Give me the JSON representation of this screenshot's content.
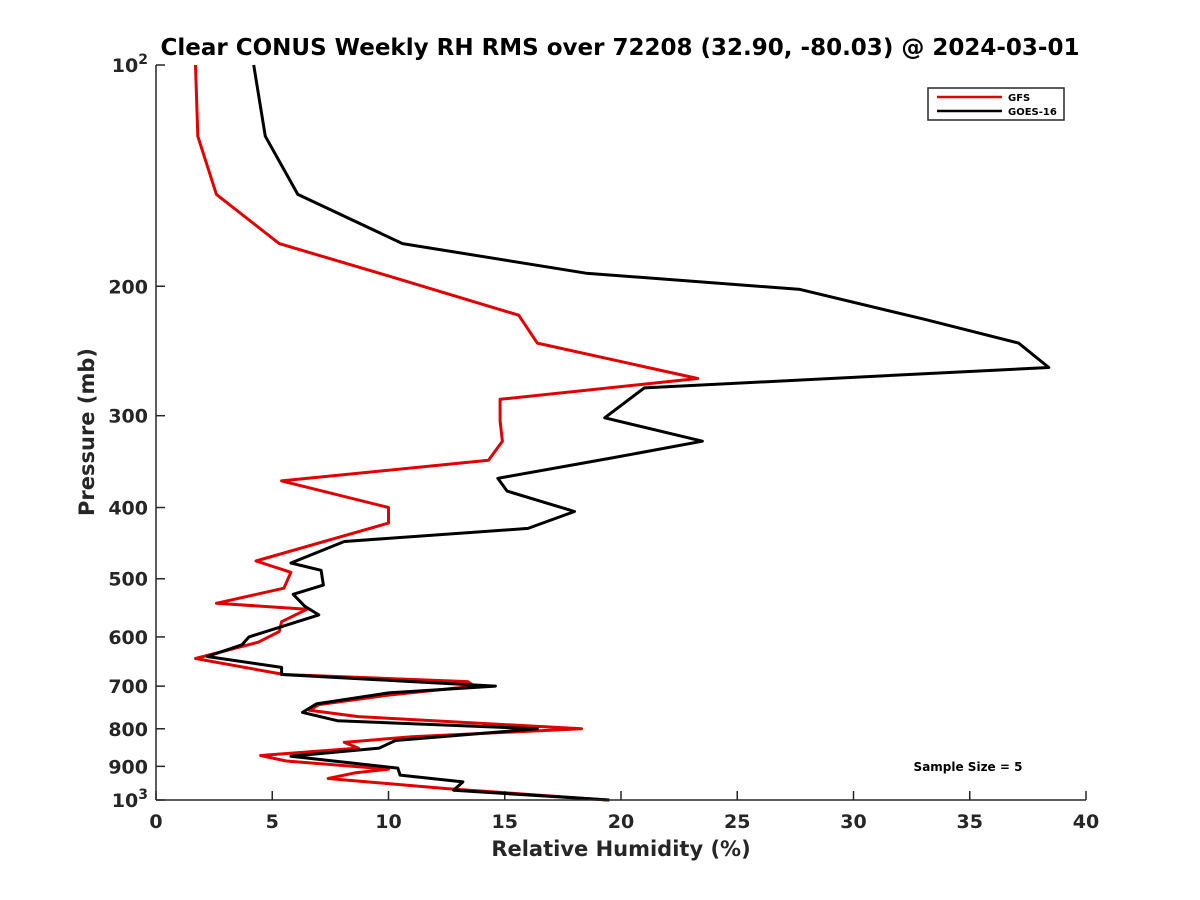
{
  "chart_data": {
    "type": "line",
    "title": "Clear CONUS Weekly RH RMS over 72208 (32.90, -80.03) @ 2024-03-01",
    "xlabel": "Relative Humidity (%)",
    "ylabel": "Pressure (mb)",
    "xlim": [
      0,
      40
    ],
    "ylim": [
      1000,
      100
    ],
    "y_scale": "log",
    "y_reversed": true,
    "x_ticks": [
      0,
      5,
      10,
      15,
      20,
      25,
      30,
      35,
      40
    ],
    "x_tick_labels": [
      "0",
      "5",
      "10",
      "15",
      "20",
      "25",
      "30",
      "35",
      "40"
    ],
    "y_ticks": [
      100,
      200,
      300,
      400,
      500,
      600,
      700,
      800,
      900,
      1000
    ],
    "y_tick_labels": [
      {
        "base": "10",
        "exp": "2"
      },
      {
        "base": "200",
        "exp": ""
      },
      {
        "base": "300",
        "exp": ""
      },
      {
        "base": "400",
        "exp": ""
      },
      {
        "base": "500",
        "exp": ""
      },
      {
        "base": "600",
        "exp": ""
      },
      {
        "base": "700",
        "exp": ""
      },
      {
        "base": "800",
        "exp": ""
      },
      {
        "base": "900",
        "exp": ""
      },
      {
        "base": "10",
        "exp": "3"
      }
    ],
    "grid": false,
    "legend_position": "top-right",
    "annotation": "Sample Size = 5",
    "series": [
      {
        "name": "GFS",
        "color": "#e00000",
        "points": [
          [
            1.7,
            100
          ],
          [
            1.8,
            125
          ],
          [
            2.6,
            150
          ],
          [
            5.3,
            175
          ],
          [
            9.6,
            192
          ],
          [
            15.6,
            219
          ],
          [
            16.4,
            239
          ],
          [
            23.3,
            267
          ],
          [
            14.8,
            285
          ],
          [
            14.8,
            305
          ],
          [
            14.9,
            325
          ],
          [
            14.3,
            345
          ],
          [
            5.4,
            368
          ],
          [
            10.0,
            400
          ],
          [
            10.0,
            420
          ],
          [
            4.3,
            473
          ],
          [
            5.8,
            490
          ],
          [
            5.5,
            515
          ],
          [
            2.6,
            540
          ],
          [
            6.5,
            550
          ],
          [
            5.4,
            572
          ],
          [
            5.3,
            590
          ],
          [
            4.4,
            610
          ],
          [
            1.7,
            642
          ],
          [
            5.5,
            675
          ],
          [
            13.4,
            690
          ],
          [
            13.7,
            700
          ],
          [
            10.0,
            720
          ],
          [
            7.0,
            742
          ],
          [
            6.6,
            755
          ],
          [
            8.7,
            770
          ],
          [
            18.3,
            800
          ],
          [
            11.0,
            820
          ],
          [
            8.1,
            835
          ],
          [
            8.7,
            850
          ],
          [
            4.5,
            870
          ],
          [
            5.6,
            885
          ],
          [
            10.0,
            908
          ],
          [
            8.6,
            918
          ],
          [
            7.4,
            935
          ],
          [
            12.5,
            965
          ],
          [
            19.4,
            1000
          ]
        ]
      },
      {
        "name": "GOES-16",
        "color": "#000000",
        "points": [
          [
            4.2,
            100
          ],
          [
            4.7,
            125
          ],
          [
            6.1,
            150
          ],
          [
            10.6,
            175
          ],
          [
            18.5,
            192
          ],
          [
            27.7,
            202
          ],
          [
            33.1,
            222
          ],
          [
            37.1,
            239
          ],
          [
            38.4,
            258
          ],
          [
            21.0,
            275
          ],
          [
            19.3,
            302
          ],
          [
            23.5,
            325
          ],
          [
            19.5,
            343
          ],
          [
            14.7,
            365
          ],
          [
            15.1,
            380
          ],
          [
            18.0,
            405
          ],
          [
            16.0,
            427
          ],
          [
            8.1,
            445
          ],
          [
            5.8,
            476
          ],
          [
            7.1,
            487
          ],
          [
            7.2,
            510
          ],
          [
            5.9,
            525
          ],
          [
            6.4,
            545
          ],
          [
            7.0,
            560
          ],
          [
            4.0,
            600
          ],
          [
            3.7,
            615
          ],
          [
            2.2,
            638
          ],
          [
            5.4,
            660
          ],
          [
            5.4,
            675
          ],
          [
            11.0,
            690
          ],
          [
            14.6,
            700
          ],
          [
            10.0,
            715
          ],
          [
            6.9,
            740
          ],
          [
            6.3,
            760
          ],
          [
            7.8,
            780
          ],
          [
            16.4,
            800
          ],
          [
            10.3,
            830
          ],
          [
            9.6,
            850
          ],
          [
            5.8,
            872
          ],
          [
            10.4,
            905
          ],
          [
            10.5,
            925
          ],
          [
            13.2,
            945
          ],
          [
            12.8,
            970
          ],
          [
            19.5,
            1000
          ]
        ]
      }
    ]
  }
}
